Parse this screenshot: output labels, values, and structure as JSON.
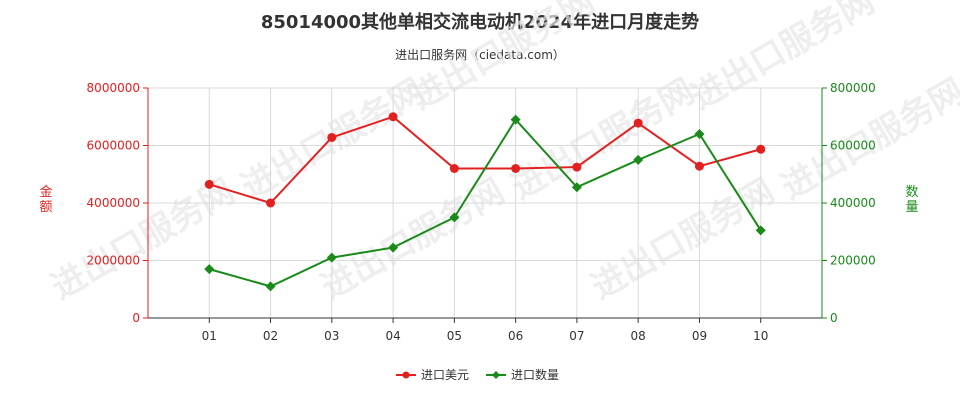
{
  "title": "85014000其他单相交流电动机2024年进口月度走势",
  "subtitle": "进出口服务网（ciedata.com）",
  "watermark": "进出口服务网",
  "colors": {
    "amount": "#e32020",
    "quantity": "#1a8a1a",
    "grid": "#d9d9d9"
  },
  "chart_data": {
    "type": "line",
    "categories": [
      "01",
      "02",
      "03",
      "04",
      "05",
      "06",
      "07",
      "08",
      "09",
      "10"
    ],
    "y_left": {
      "label": "金额",
      "ylim": [
        0,
        8000000
      ],
      "ticks": [
        0,
        2000000,
        4000000,
        6000000,
        8000000
      ]
    },
    "y_right": {
      "label": "数量",
      "ylim": [
        0,
        800000
      ],
      "ticks": [
        0,
        200000,
        400000,
        600000,
        800000
      ]
    },
    "grid": true,
    "legend": "bottom-center",
    "series": [
      {
        "name": "进口美元",
        "axis": "left",
        "marker": "circle",
        "values": [
          4650000,
          4000000,
          6280000,
          7000000,
          5200000,
          5200000,
          5250000,
          6780000,
          5280000,
          5870000
        ]
      },
      {
        "name": "进口数量",
        "axis": "right",
        "marker": "diamond",
        "values": [
          170000,
          110000,
          210000,
          245000,
          350000,
          690000,
          455000,
          550000,
          640000,
          305000
        ]
      }
    ]
  }
}
